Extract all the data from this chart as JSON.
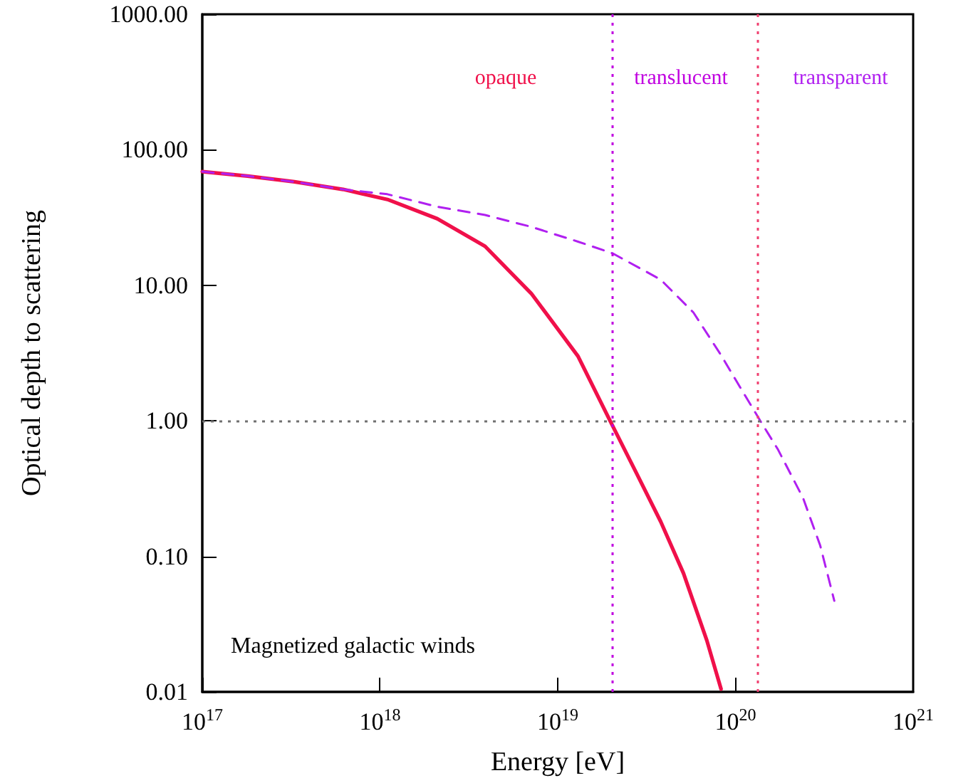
{
  "chart_data": {
    "type": "line",
    "xlabel": "Energy [eV]",
    "ylabel": "Optical depth to scattering",
    "log": "xy",
    "marker": "none",
    "grid": false,
    "xlim": [
      1e+17,
      1e+21
    ],
    "xticks": [
      {
        "value": 1e+17,
        "label": "10$^{17}$"
      },
      {
        "value": 1e+18,
        "label": "10$^{18}$"
      },
      {
        "value": 1e+19,
        "label": "10$^{19}$"
      },
      {
        "value": 1e+20,
        "label": "10$^{20}$"
      },
      {
        "value": 1e+21,
        "label": "10$^{21}$"
      }
    ],
    "ylim": [
      0.01,
      1000
    ],
    "yticks": [
      {
        "value": 0.01,
        "label": "0.01"
      },
      {
        "value": 0.1,
        "label": "0.10"
      },
      {
        "value": 1,
        "label": "1.00"
      },
      {
        "value": 10,
        "label": "10.00"
      },
      {
        "value": 100,
        "label": "100.00"
      },
      {
        "value": 1000,
        "label": "1000.00"
      }
    ],
    "series": [
      {
        "color": "#f0104a",
        "line_style": "solid",
        "x": [
          1e+17,
          1.8e+17,
          3.3e+17,
          6.2e+17,
          1.1e+18,
          2.1e+18,
          3.9e+18,
          7.1e+18,
          1.3e+19,
          1.97e+19,
          2.75e+19,
          3.8e+19,
          5.1e+19,
          6.9e+19,
          8.3e+19
        ],
        "values": [
          69,
          64,
          58,
          51,
          43,
          31,
          19.4,
          8.7,
          3.0,
          1.0,
          0.42,
          0.18,
          0.075,
          0.024,
          0.0105
        ]
      },
      {
        "color": "#b020f0",
        "line_style": "dashed",
        "x": [
          1e+17,
          1.8e+17,
          3.3e+17,
          6.2e+17,
          1.1e+18,
          2.1e+18,
          3.9e+18,
          7.1e+18,
          1.3e+19,
          2.04e+19,
          3.8e+19,
          5.8e+19,
          8.3e+19,
          1.07e+20,
          1.38e+20,
          1.74e+20,
          2.4e+20,
          3e+20,
          3.6e+20
        ],
        "values": [
          69,
          64,
          58,
          51,
          47,
          38,
          33,
          27,
          21,
          17.2,
          11,
          6.3,
          3.05,
          1.74,
          1.0,
          0.61,
          0.27,
          0.12,
          0.047
        ]
      }
    ],
    "ref_lines": [
      {
        "axis": "y",
        "value": 1,
        "color": "#707070",
        "line_style": "dotted"
      },
      {
        "axis": "x",
        "value": 2.04e+19,
        "color": "#c000e0",
        "line_style": "dotted"
      },
      {
        "axis": "x",
        "value": 1.34e+20,
        "color": "#f04070",
        "line_style": "dotted"
      }
    ],
    "annotations": [
      "opaque",
      "translucent",
      "transparent",
      "Magnetized galactic winds"
    ]
  }
}
